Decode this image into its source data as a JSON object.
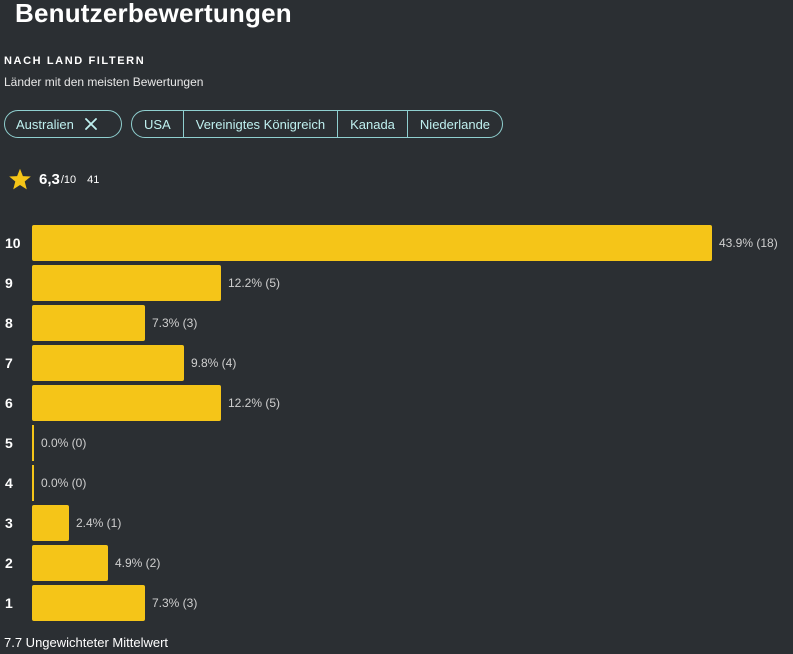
{
  "header": {
    "title": "Benutzerbewertungen"
  },
  "filter": {
    "heading": "NACH LAND FILTERN",
    "subheading": "Länder mit den meisten Bewertungen",
    "active_chip": {
      "label": "Australien",
      "icon": "close-icon"
    },
    "chips": [
      {
        "label": "USA"
      },
      {
        "label": "Vereinigtes Königreich"
      },
      {
        "label": "Kanada"
      },
      {
        "label": "Niederlande"
      }
    ]
  },
  "summary": {
    "icon": "star-icon",
    "value": "6,3",
    "scale": "/10",
    "count": "41"
  },
  "colors": {
    "background": "#2b2f33",
    "bar": "#f5c518",
    "chip_border": "#8fcfcf",
    "chip_text": "#bff0ef"
  },
  "chart_data": {
    "type": "bar",
    "orientation": "horizontal",
    "categories": [
      "10",
      "9",
      "8",
      "7",
      "6",
      "5",
      "4",
      "3",
      "2",
      "1"
    ],
    "values": [
      43.9,
      12.2,
      7.3,
      9.8,
      12.2,
      0.0,
      0.0,
      2.4,
      4.9,
      7.3
    ],
    "counts": [
      18,
      5,
      3,
      4,
      5,
      0,
      0,
      1,
      2,
      3
    ],
    "value_labels": [
      "43.9% (18)",
      "12.2% (5)",
      "7.3% (3)",
      "9.8% (4)",
      "12.2% (5)",
      "0.0% (0)",
      "0.0% (0)",
      "2.4% (1)",
      "4.9% (2)",
      "7.3% (3)"
    ],
    "title": "",
    "xlabel": "",
    "ylabel": ""
  },
  "footer": {
    "mean_text": "7.7 Ungewichteter Mittelwert"
  }
}
